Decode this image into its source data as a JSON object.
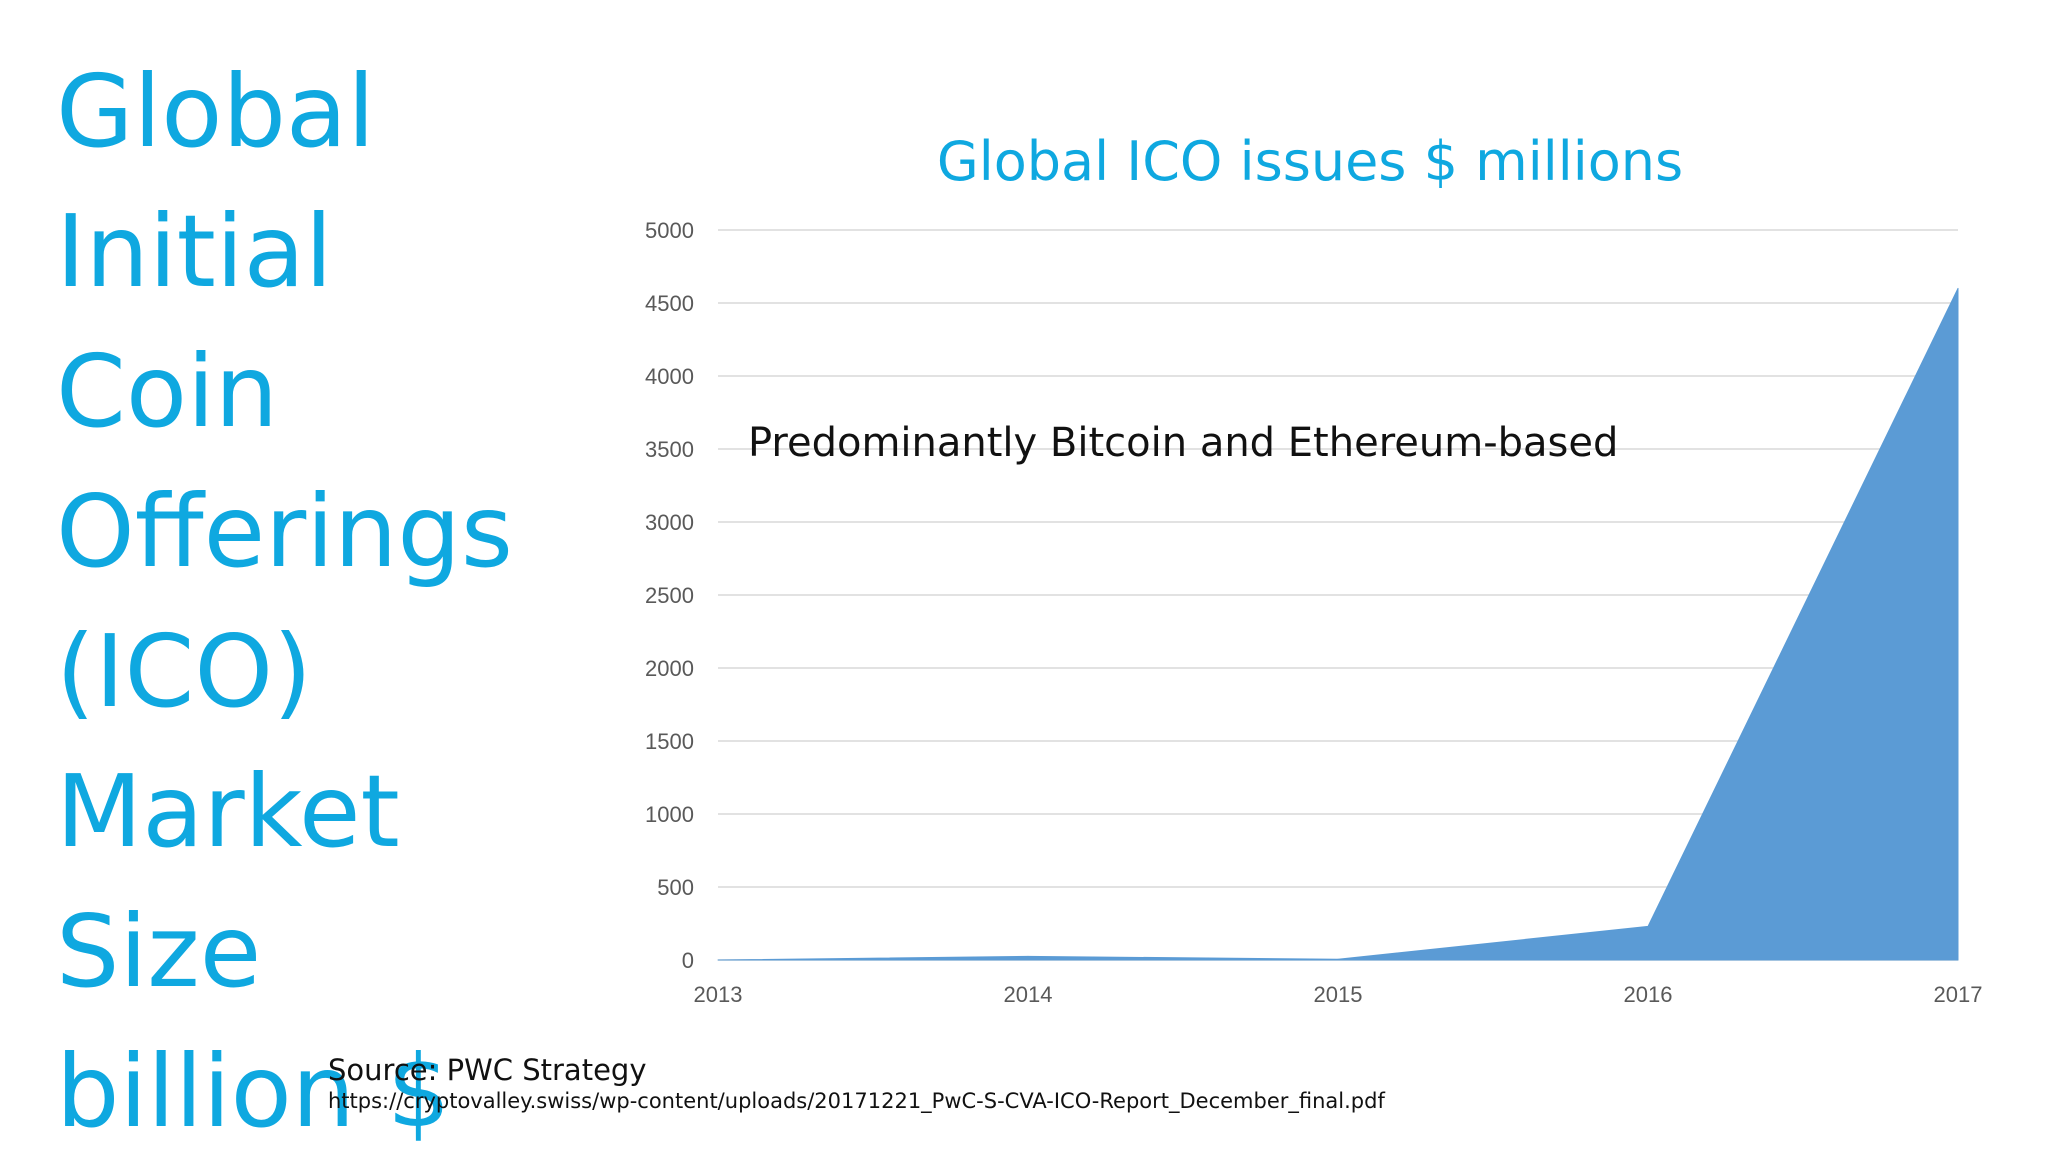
{
  "slide": {
    "title_lines": [
      "Global",
      "Initial",
      "Coin",
      "Offerings",
      "(ICO)",
      "Market",
      "Size",
      "billion $"
    ]
  },
  "chart_data": {
    "type": "area",
    "title": "Global ICO issues $ millions",
    "xlabel": "",
    "ylabel": "",
    "x": [
      "2013",
      "2014",
      "2015",
      "2016",
      "2017"
    ],
    "series": [
      {
        "values": [
          0,
          25,
          5,
          230,
          4600
        ]
      }
    ],
    "ylim": [
      0,
      5000
    ],
    "yticks": [
      0,
      500,
      1000,
      1500,
      2000,
      2500,
      3000,
      3500,
      4000,
      4500,
      5000
    ],
    "grid": true,
    "legend": "none",
    "annotation": "Predominantly Bitcoin and Ethereum-based",
    "colors": {
      "fill": "#5b9bd5",
      "title": "#0fa8e0"
    }
  },
  "source": {
    "label": "Source: PWC Strategy",
    "url": "https://cryptovalley.swiss/wp-content/uploads/20171221_PwC-S-CVA-ICO-Report_December_final.pdf"
  }
}
